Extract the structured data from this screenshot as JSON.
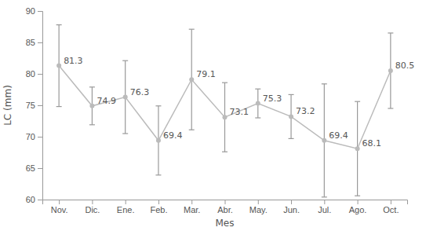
{
  "chart_data": {
    "type": "line",
    "categories": [
      "Nov.",
      "Dic.",
      "Ene.",
      "Feb.",
      "Mar.",
      "Abr.",
      "May.",
      "Jun.",
      "Jul.",
      "Ago.",
      "Oct."
    ],
    "values": [
      81.3,
      74.9,
      76.3,
      69.4,
      79.1,
      73.1,
      75.3,
      73.2,
      69.4,
      68.1,
      80.5
    ],
    "errors_lower": [
      6.5,
      3.0,
      5.8,
      5.5,
      8.0,
      5.5,
      2.3,
      3.5,
      9.0,
      7.5,
      6.0
    ],
    "errors_upper": [
      6.5,
      3.0,
      5.8,
      5.5,
      8.0,
      5.5,
      2.3,
      3.5,
      9.0,
      7.5,
      6.0
    ],
    "color": "#bbbbbb",
    "marker": "circle",
    "line_style": "solid",
    "xlabel": "Mes",
    "ylabel": "LC (mm)",
    "ylim": [
      60,
      90
    ],
    "yticks": [
      60,
      65,
      70,
      75,
      80,
      85,
      90
    ],
    "grid": false,
    "data_labels": true
  }
}
